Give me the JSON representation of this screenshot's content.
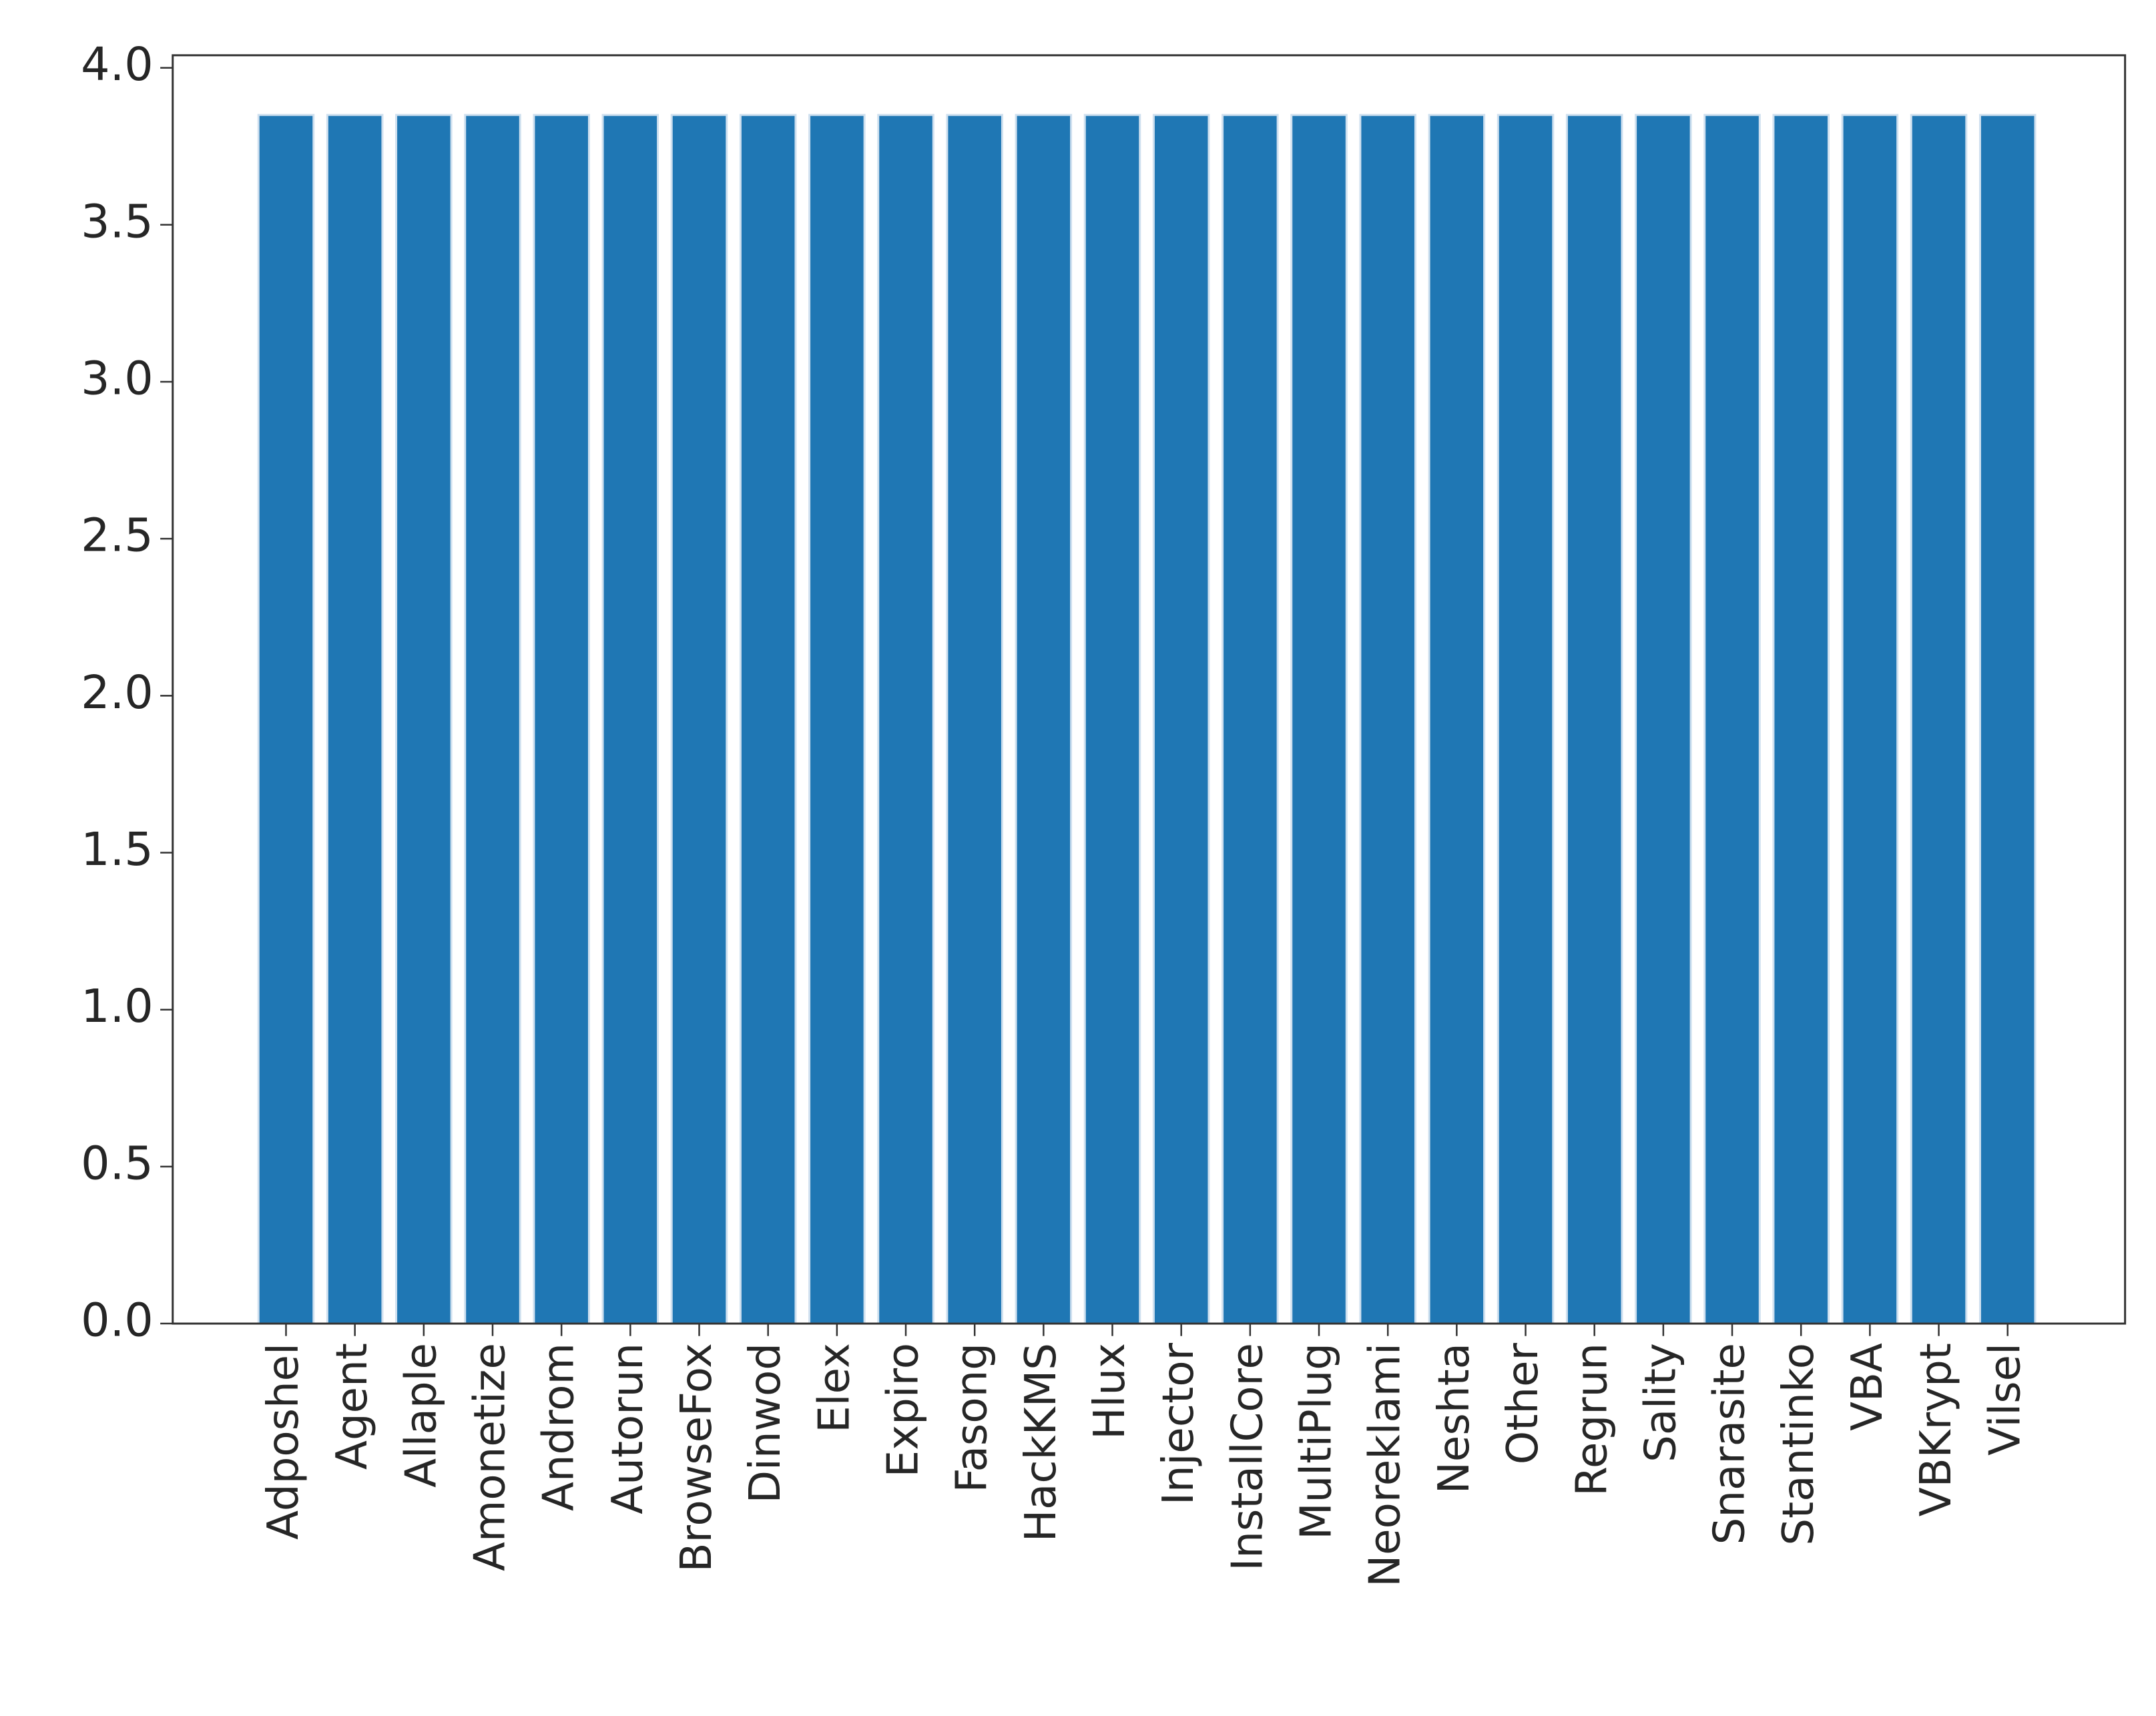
{
  "chart_data": {
    "type": "bar",
    "categories": [
      "Adposhel",
      "Agent",
      "Allaple",
      "Amonetize",
      "Androm",
      "Autorun",
      "BrowseFox",
      "Dinwod",
      "Elex",
      "Expiro",
      "Fasong",
      "HackKMS",
      "Hlux",
      "Injector",
      "InstallCore",
      "MultiPlug",
      "Neoreklami",
      "Neshta",
      "Other",
      "Regrun",
      "Sality",
      "Snarasite",
      "Stantinko",
      "VBA",
      "VBKrypt",
      "Vilsel"
    ],
    "values": [
      3.85,
      3.85,
      3.85,
      3.85,
      3.85,
      3.85,
      3.85,
      3.85,
      3.85,
      3.85,
      3.85,
      3.85,
      3.85,
      3.85,
      3.85,
      3.85,
      3.85,
      3.85,
      3.85,
      3.85,
      3.85,
      3.85,
      3.85,
      3.85,
      3.85,
      3.85
    ],
    "color": "#1f77b4",
    "ylim": [
      0,
      4.04
    ],
    "yticks": [
      {
        "value": 0,
        "label": "0.0"
      },
      0.5,
      {
        "value": 1,
        "label": "1.0"
      },
      1.5,
      {
        "value": 2,
        "label": "2.0"
      },
      2.5,
      {
        "value": 3,
        "label": "3.0"
      },
      3.5,
      {
        "value": 4,
        "label": "4.0"
      }
    ],
    "grid": false
  }
}
